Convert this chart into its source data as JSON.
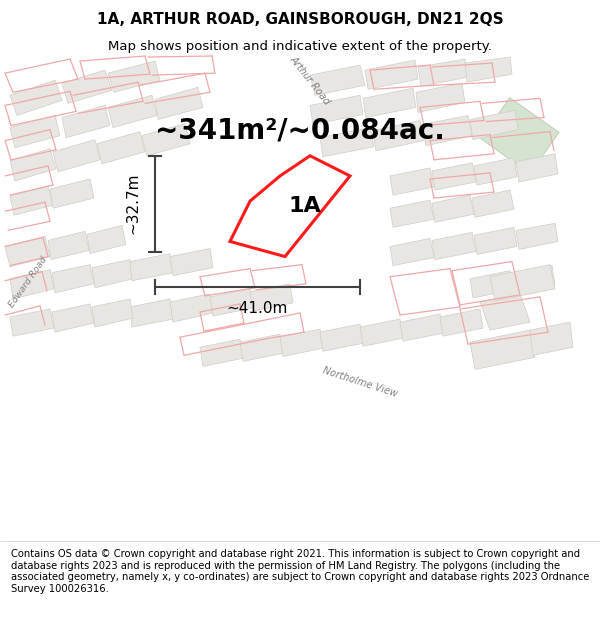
{
  "title": "1A, ARTHUR ROAD, GAINSBOROUGH, DN21 2QS",
  "subtitle": "Map shows position and indicative extent of the property.",
  "area_text": "~341m²/~0.084ac.",
  "label_1a": "1A",
  "dim_width": "~41.0m",
  "dim_height": "~32.7m",
  "footer": "Contains OS data © Crown copyright and database right 2021. This information is subject to Crown copyright and database rights 2023 and is reproduced with the permission of HM Land Registry. The polygons (including the associated geometry, namely x, y co-ordinates) are subject to Crown copyright and database rights 2023 Ordnance Survey 100026316.",
  "bg_color": "#f5f3f0",
  "building_fill": "#e8e6e2",
  "building_edge": "#d0cdc8",
  "green_fill": "#d4e4d0",
  "green_edge": "#c0d4bc",
  "red_boundary": "#f0a8a8",
  "red_property": "#ff0000",
  "dim_color": "#404040",
  "road_label_color": "#808080",
  "title_fontsize": 11,
  "subtitle_fontsize": 9.5,
  "area_fontsize": 20,
  "label_fontsize": 16,
  "dim_fontsize": 11,
  "footer_fontsize": 7.2
}
